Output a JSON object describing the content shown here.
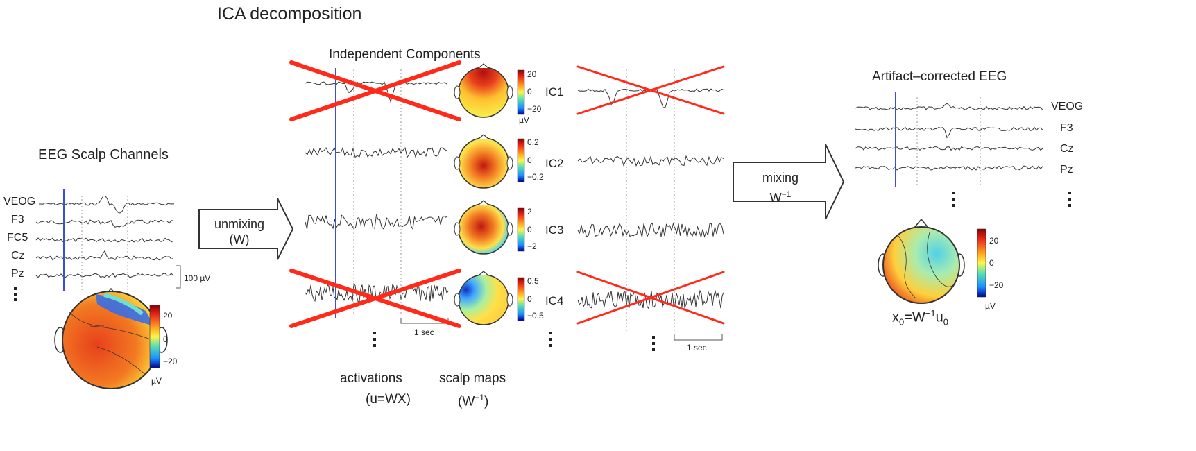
{
  "diagram": {
    "title": "ICA decomposition",
    "eeg": {
      "heading": "EEG Scalp Channels",
      "channels": [
        "VEOG",
        "F3",
        "FC5",
        "Cz",
        "Pz"
      ],
      "scale_label": "100 µV",
      "colorbar": {
        "ticks": [
          "20",
          "0",
          "−20"
        ],
        "unit": "µV"
      }
    },
    "unmixing": {
      "line1": "unmixing",
      "line2": "(W)"
    },
    "components": {
      "heading": "Independent Components",
      "items": [
        {
          "label": "IC1",
          "ticks": [
            "20",
            "0",
            "−20"
          ],
          "unit": "µV",
          "rejected": true
        },
        {
          "label": "IC2",
          "ticks": [
            "0.2",
            "0",
            "−0.2"
          ],
          "rejected": false
        },
        {
          "label": "IC3",
          "ticks": [
            "2",
            "0",
            "−2"
          ],
          "rejected": false
        },
        {
          "label": "IC4",
          "ticks": [
            "0.5",
            "0",
            "−0.5"
          ],
          "rejected": true
        }
      ],
      "scale_label": "1 sec",
      "activations_label": "activations",
      "activations_formula": "(u=WX)",
      "scalpmaps_label": "scalp maps",
      "scalpmaps_formula_base": "(W",
      "scalpmaps_formula_exp": "−1",
      "scalpmaps_formula_close": ")"
    },
    "mixing": {
      "line1": "mixing",
      "line2_base": "W",
      "line2_exp": "−1"
    },
    "right_traces_scale_label": "1 sec",
    "corrected": {
      "heading": "Artifact–corrected EEG",
      "channels": [
        "VEOG",
        "F3",
        "Cz",
        "Pz"
      ],
      "colorbar": {
        "ticks": [
          "20",
          "0",
          "−20"
        ],
        "unit": "µV"
      },
      "formula": {
        "x": "x",
        "sub0": "0",
        "eq": "=W",
        "exp": "−1",
        "u": "u",
        "sub1": "0"
      }
    },
    "colors": {
      "trace": "#333333",
      "marker": "#3b4fd8",
      "cross": "#ff2a1a",
      "grid": "#999999"
    }
  }
}
